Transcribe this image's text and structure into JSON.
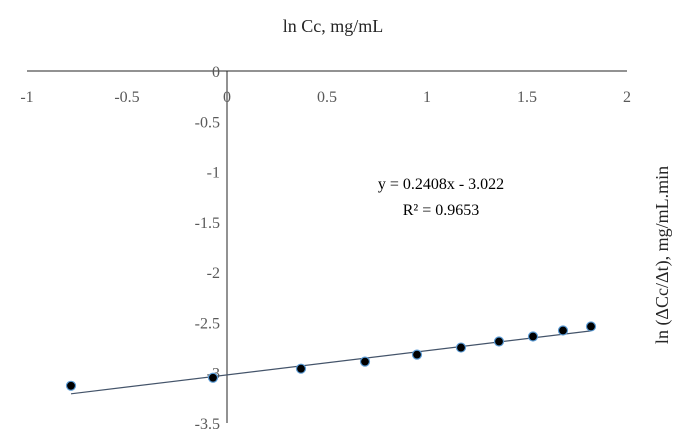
{
  "chart_data": {
    "type": "scatter",
    "title": "",
    "xlabel": "ln Cc, mg/mL",
    "ylabel": "ln (ΔCc/Δt), mg/mL.min",
    "xlim": [
      -1,
      2
    ],
    "ylim": [
      -3.5,
      0
    ],
    "x_ticks": [
      "-1",
      "-0.5",
      "0",
      "0.5",
      "1",
      "1.5",
      "2"
    ],
    "y_ticks": [
      "0",
      "-0.5",
      "-1",
      "-1.5",
      "-2",
      "-2.5",
      "-3",
      "-3.5"
    ],
    "grid": false,
    "legend": "none",
    "series": [
      {
        "x": [
          -0.78,
          -0.07,
          0.37,
          0.69,
          0.95,
          1.17,
          1.36,
          1.53,
          1.68,
          1.82
        ],
        "y": [
          -3.13,
          -3.05,
          -2.96,
          -2.89,
          -2.82,
          -2.75,
          -2.69,
          -2.64,
          -2.58,
          -2.54
        ]
      }
    ],
    "trendline": {
      "slope": 0.2408,
      "intercept": -3.022,
      "x_range": [
        -0.78,
        1.82
      ],
      "equation": "y = 0.2408x - 3.022",
      "r_squared": "R² = 0.9653"
    },
    "colors": {
      "marker_fill": "#000000",
      "marker_stroke": "#5b9bd5",
      "trendline": "#44546a",
      "axis": "#262626",
      "tick_text": "#595959"
    }
  }
}
